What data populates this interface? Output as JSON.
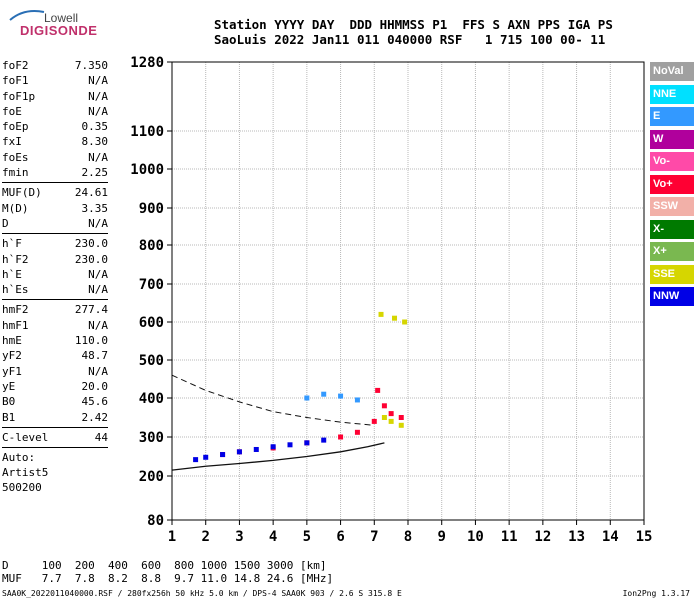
{
  "logo": {
    "line1": "Lowell",
    "line2": "DIGISONDE"
  },
  "header": {
    "line1": "Station YYYY DAY  DDD HHMMSS P1  FFS S AXN PPS IGA PS",
    "line2": "SaoLuis 2022 Jan11 011 040000 RSF   1 715 100 00- 11"
  },
  "params": [
    {
      "name": "foF2",
      "value": "7.350"
    },
    {
      "name": "foF1",
      "value": "N/A"
    },
    {
      "name": "foF1p",
      "value": "N/A"
    },
    {
      "name": "foE",
      "value": "N/A"
    },
    {
      "name": "foEp",
      "value": "0.35"
    },
    {
      "name": "fxI",
      "value": "8.30"
    },
    {
      "name": "foEs",
      "value": "N/A"
    },
    {
      "name": "fmin",
      "value": "2.25"
    },
    {
      "name": "MUF(D)",
      "value": "24.61",
      "sepBefore": true
    },
    {
      "name": "M(D)",
      "value": "3.35"
    },
    {
      "name": "D",
      "value": "N/A"
    },
    {
      "name": "h`F",
      "value": "230.0",
      "sepBefore": true
    },
    {
      "name": "h`F2",
      "value": "230.0"
    },
    {
      "name": "h`E",
      "value": "N/A"
    },
    {
      "name": "h`Es",
      "value": "N/A"
    },
    {
      "name": "hmF2",
      "value": "277.4",
      "sepBefore": true
    },
    {
      "name": "hmF1",
      "value": "N/A"
    },
    {
      "name": "hmE",
      "value": "110.0"
    },
    {
      "name": "yF2",
      "value": "48.7"
    },
    {
      "name": "yF1",
      "value": "N/A"
    },
    {
      "name": "yE",
      "value": "20.0"
    },
    {
      "name": "B0",
      "value": "45.6"
    },
    {
      "name": "B1",
      "value": "2.42"
    },
    {
      "name": "C-level",
      "value": "44",
      "sepBefore": true
    }
  ],
  "auto": {
    "label": "Auto:",
    "artist": "Artist5",
    "version": "500200"
  },
  "legend": [
    {
      "label": "NoVal",
      "color": "#a0a0a0"
    },
    {
      "label": "NNE",
      "color": "#00e0ff"
    },
    {
      "label": "E",
      "color": "#3399ff"
    },
    {
      "label": "W",
      "color": "#b0009c"
    },
    {
      "label": "Vo-",
      "color": "#ff4aa8"
    },
    {
      "label": "Vo+",
      "color": "#ff0033"
    },
    {
      "label": "SSW",
      "color": "#f2b0a8"
    },
    {
      "label": "X-",
      "color": "#007a00"
    },
    {
      "label": "X+",
      "color": "#7ab850"
    },
    {
      "label": "SSE",
      "color": "#d6d600"
    },
    {
      "label": "NNW",
      "color": "#0000e6"
    }
  ],
  "footer": {
    "line1": "D     100  200  400  600  800 1000 1500 3000 [km]",
    "line2": "MUF   7.7  7.8  8.2  8.8  9.7 11.0 14.8 24.6 [MHz]"
  },
  "bottom_line": "SAA0K_2022011040000.RSF / 280fx256h 50 kHz 5.0 km / DPS-4 SAA0K 903 / 2.6 S 315.8 E",
  "version": "Ion2Png 1.3.17",
  "chart_data": {
    "type": "scatter",
    "x_ticks": [
      "1",
      "2",
      "3",
      "4",
      "5",
      "6",
      "7",
      "8",
      "9",
      "10",
      "11",
      "12",
      "13",
      "14",
      "15"
    ],
    "y_ticks": [
      "80",
      "200",
      "300",
      "400",
      "500",
      "600",
      "700",
      "800",
      "900",
      "1000",
      "1100",
      "1280"
    ],
    "xlim": [
      1,
      15
    ],
    "ylim": [
      80,
      1280
    ],
    "y_scale": "piecewise",
    "grid": true,
    "series": [
      {
        "name": "Vo+",
        "color": "#ff0033",
        "points": [
          [
            2.5,
            255
          ],
          [
            3.0,
            262
          ],
          [
            4.0,
            272
          ],
          [
            5.0,
            285
          ],
          [
            6.0,
            300
          ],
          [
            6.5,
            312
          ],
          [
            7.0,
            340
          ],
          [
            7.1,
            420
          ],
          [
            7.3,
            380
          ],
          [
            7.5,
            360
          ],
          [
            7.8,
            350
          ]
        ]
      },
      {
        "name": "NNW",
        "color": "#0000e6",
        "points": [
          [
            1.7,
            242
          ],
          [
            2.0,
            248
          ],
          [
            2.5,
            255
          ],
          [
            3.0,
            262
          ],
          [
            3.5,
            268
          ],
          [
            4.0,
            275
          ],
          [
            4.5,
            280
          ],
          [
            5.0,
            285
          ],
          [
            5.5,
            292
          ]
        ]
      },
      {
        "name": "SSE",
        "color": "#d6d600",
        "points": [
          [
            7.3,
            350
          ],
          [
            7.5,
            340
          ],
          [
            7.8,
            330
          ],
          [
            7.2,
            620
          ],
          [
            7.6,
            610
          ],
          [
            7.9,
            600
          ]
        ]
      },
      {
        "name": "E",
        "color": "#3399ff",
        "points": [
          [
            5.0,
            400
          ],
          [
            5.5,
            410
          ],
          [
            6.0,
            405
          ],
          [
            6.5,
            395
          ]
        ]
      }
    ],
    "annotations": []
  }
}
